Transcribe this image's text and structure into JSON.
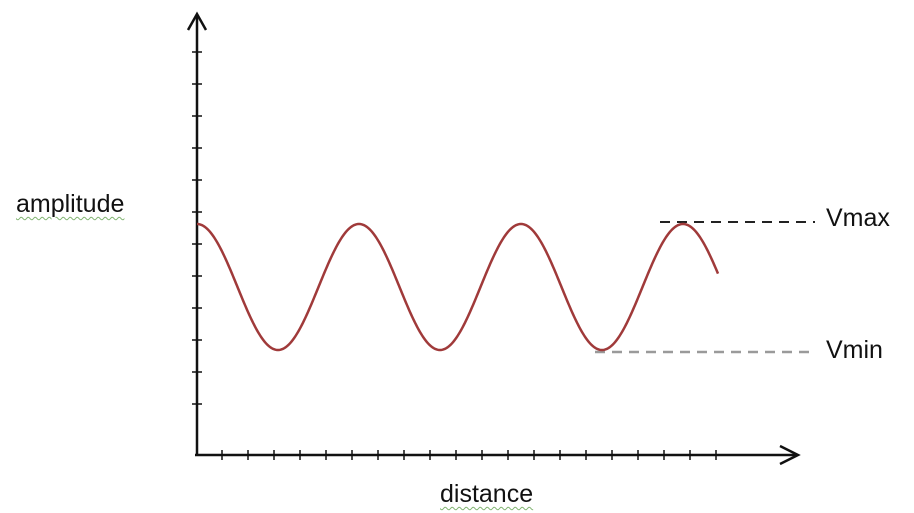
{
  "labels": {
    "y_axis": "amplitude",
    "x_axis": "distance",
    "max_marker": "Vmax",
    "min_marker": "Vmin"
  },
  "wave": {
    "cycles_shown": 3.4,
    "color": "#a03a3a"
  },
  "colors": {
    "axis": "#111111",
    "vmax_line": "#222222",
    "vmin_line": "#9a9a9a"
  }
}
